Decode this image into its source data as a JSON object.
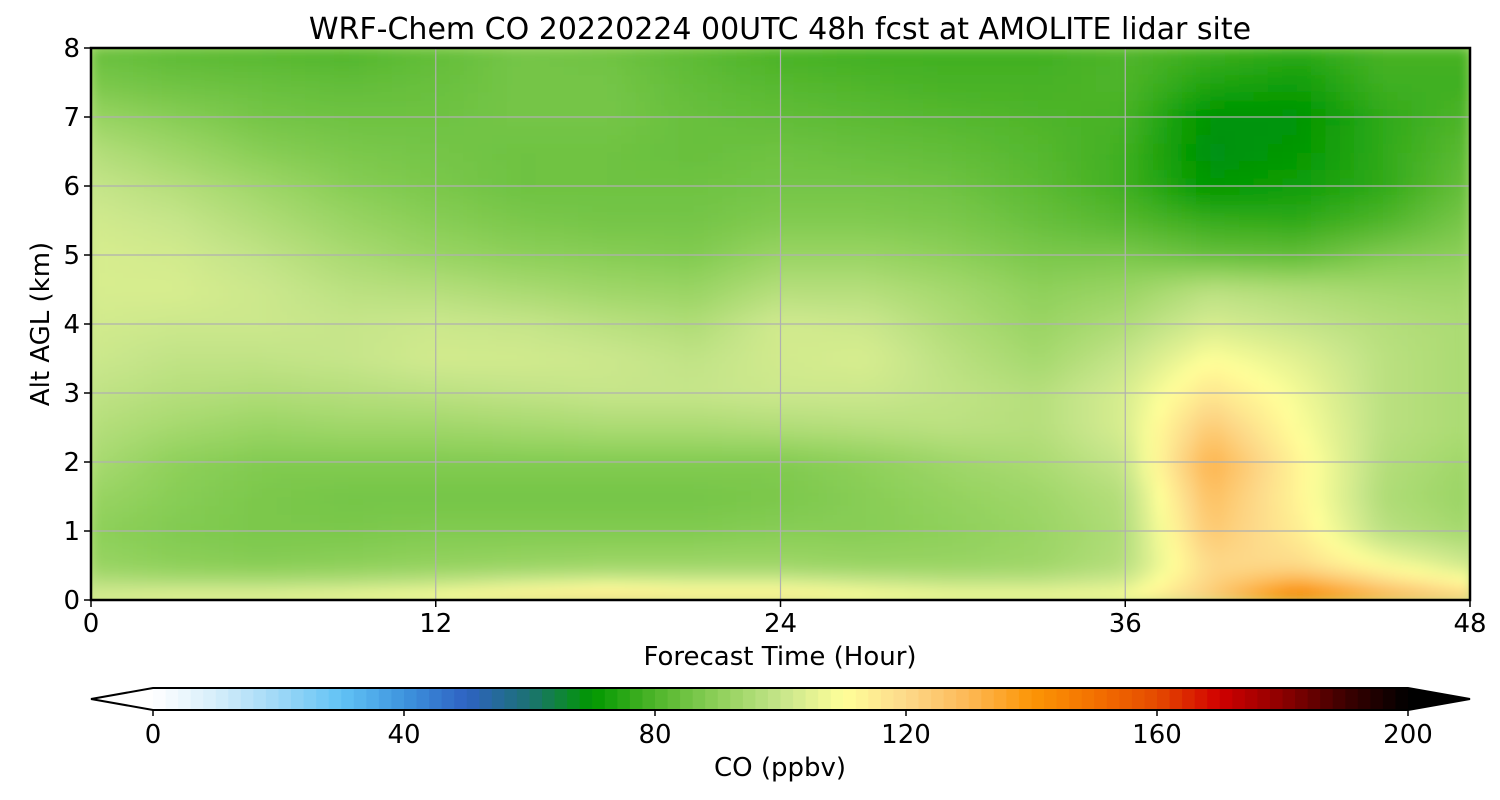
{
  "chart_data": {
    "type": "heatmap",
    "title": "WRF-Chem CO  20220224 00UTC 48h fcst at AMOLITE lidar site",
    "xlabel": "Forecast Time (Hour)",
    "ylabel": "Alt AGL (km)",
    "xlim": [
      0,
      48
    ],
    "ylim": [
      0,
      8
    ],
    "x_ticks": [
      "0",
      "12",
      "24",
      "36",
      "48"
    ],
    "y_ticks": [
      "0",
      "1",
      "2",
      "3",
      "4",
      "5",
      "6",
      "7",
      "8"
    ],
    "grid": true,
    "colorbar": {
      "label": "CO  (ppbv)",
      "range": [
        0,
        200
      ],
      "extend": "both",
      "ticks": [
        "0",
        "40",
        "80",
        "120",
        "160",
        "200"
      ],
      "colors": [
        "#ffffff",
        "#d6eefa",
        "#9ed8f7",
        "#62c3f5",
        "#3e94de",
        "#2e62c2",
        "#1c7272",
        "#019800",
        "#4fb52a",
        "#8ed05a",
        "#c6e58a",
        "#ffff99",
        "#fdd98a",
        "#fdb855",
        "#fc9606",
        "#f37100",
        "#e54a00",
        "#d10000",
        "#8c0000",
        "#3c0000",
        "#000000"
      ]
    },
    "times_h": [
      0,
      3,
      6,
      9,
      12,
      15,
      18,
      21,
      24,
      27,
      30,
      33,
      36,
      39,
      42,
      45,
      48
    ],
    "altitudes_km": [
      0,
      0.25,
      0.5,
      1,
      1.5,
      2,
      2.5,
      3,
      3.5,
      4,
      4.5,
      5,
      5.5,
      6,
      6.5,
      7,
      7.5,
      8
    ],
    "values_ppbv": [
      [
        105,
        108,
        108,
        110,
        112,
        118,
        122,
        118,
        118,
        112,
        110,
        110,
        110,
        125,
        150,
        135,
        125
      ],
      [
        98,
        97,
        97,
        98,
        100,
        103,
        105,
        104,
        104,
        102,
        100,
        100,
        103,
        122,
        135,
        122,
        112
      ],
      [
        92,
        90,
        89,
        90,
        91,
        92,
        93,
        93,
        93,
        92,
        92,
        93,
        97,
        120,
        120,
        110,
        102
      ],
      [
        90,
        88,
        87,
        87,
        88,
        88,
        88,
        88,
        89,
        89,
        90,
        92,
        96,
        125,
        115,
        98,
        94
      ],
      [
        92,
        89,
        87,
        86,
        86,
        86,
        86,
        86,
        87,
        89,
        91,
        93,
        97,
        128,
        113,
        96,
        92
      ],
      [
        95,
        90,
        88,
        88,
        88,
        88,
        88,
        88,
        88,
        90,
        93,
        95,
        100,
        132,
        113,
        97,
        93
      ],
      [
        97,
        94,
        92,
        93,
        93,
        94,
        95,
        95,
        96,
        97,
        98,
        97,
        103,
        125,
        110,
        98,
        95
      ],
      [
        99,
        97,
        96,
        97,
        98,
        99,
        100,
        100,
        101,
        101,
        99,
        97,
        103,
        117,
        108,
        98,
        95
      ],
      [
        101,
        99,
        99,
        100,
        102,
        102,
        101,
        99,
        102,
        103,
        98,
        94,
        100,
        110,
        105,
        98,
        95
      ],
      [
        102,
        101,
        101,
        100,
        101,
        100,
        98,
        96,
        102,
        101,
        96,
        92,
        96,
        103,
        100,
        97,
        95
      ],
      [
        103,
        103,
        101,
        98,
        97,
        95,
        93,
        92,
        97,
        97,
        94,
        90,
        92,
        98,
        96,
        94,
        93
      ],
      [
        103,
        102,
        99,
        95,
        92,
        90,
        89,
        88,
        92,
        92,
        90,
        87,
        87,
        84,
        83,
        88,
        90
      ],
      [
        102,
        100,
        96,
        92,
        89,
        87,
        86,
        86,
        88,
        88,
        87,
        84,
        81,
        77,
        76,
        80,
        87
      ],
      [
        100,
        97,
        93,
        89,
        87,
        85,
        85,
        85,
        86,
        86,
        85,
        82,
        78,
        70,
        72,
        76,
        84
      ],
      [
        97,
        93,
        89,
        87,
        86,
        85,
        85,
        84,
        85,
        84,
        83,
        81,
        78,
        68,
        70,
        76,
        82
      ],
      [
        92,
        89,
        86,
        85,
        85,
        86,
        86,
        84,
        83,
        82,
        81,
        80,
        79,
        69,
        69,
        76,
        80
      ],
      [
        87,
        85,
        84,
        83,
        84,
        86,
        86,
        83,
        81,
        80,
        79,
        79,
        80,
        74,
        72,
        78,
        78
      ],
      [
        84,
        82,
        81,
        80,
        83,
        86,
        85,
        82,
        79,
        78,
        78,
        78,
        80,
        78,
        76,
        79,
        79
      ]
    ]
  }
}
